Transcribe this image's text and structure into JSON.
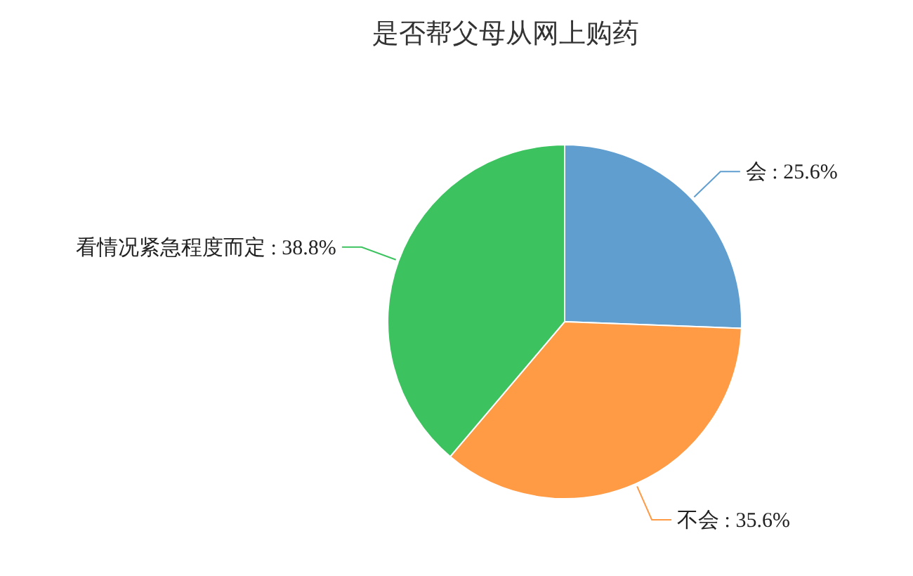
{
  "chart_data": {
    "type": "pie",
    "title": "是否帮父母从网上购药",
    "categories": [
      "会",
      "不会",
      "看情况紧急程度而定"
    ],
    "values": [
      25.6,
      35.6,
      38.8
    ],
    "value_labels": [
      "25.6%",
      "35.6%",
      "38.8%"
    ],
    "colors": [
      "#5f9ecf",
      "#ff9a45",
      "#3cc35f"
    ],
    "legend": false
  }
}
